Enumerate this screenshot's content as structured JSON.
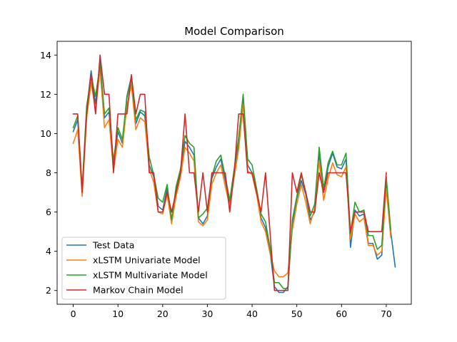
{
  "chart_data": {
    "type": "line",
    "title": "Model Comparison",
    "xlabel": "",
    "ylabel": "",
    "xlim": [
      -3.6,
      75.6
    ],
    "ylim": [
      1.3,
      14.7
    ],
    "xticks": [
      0,
      10,
      20,
      30,
      40,
      50,
      60,
      70
    ],
    "yticks": [
      2,
      4,
      6,
      8,
      10,
      12,
      14
    ],
    "grid": false,
    "legend_position": "lower-left",
    "series": [
      {
        "name": "Test Data",
        "color": "#1f77b4",
        "x": [
          0,
          1,
          2,
          3,
          4,
          5,
          6,
          7,
          8,
          9,
          10,
          11,
          12,
          13,
          14,
          15,
          16,
          17,
          18,
          19,
          20,
          21,
          22,
          23,
          24,
          25,
          26,
          27,
          28,
          29,
          30,
          31,
          32,
          33,
          34,
          35,
          36,
          37,
          38,
          39,
          40,
          41,
          42,
          43,
          44,
          45,
          46,
          47,
          48,
          49,
          50,
          51,
          52,
          53,
          54,
          55,
          56,
          57,
          58,
          59,
          60,
          61,
          62,
          63,
          64,
          65,
          66,
          67,
          68,
          69,
          70,
          71,
          72
        ],
        "y": [
          10.1,
          10.7,
          7.0,
          11.2,
          13.2,
          11.5,
          13.7,
          10.8,
          11.1,
          8.4,
          10.1,
          9.5,
          11.9,
          12.9,
          10.5,
          11.1,
          10.9,
          8.4,
          7.8,
          6.3,
          6.1,
          7.2,
          5.5,
          7.1,
          8.1,
          9.6,
          9.3,
          8.9,
          5.7,
          5.4,
          5.8,
          7.7,
          8.3,
          8.7,
          7.6,
          6.5,
          8.0,
          9.5,
          11.8,
          8.4,
          8.0,
          7.1,
          5.7,
          5.2,
          4.0,
          2.2,
          1.9,
          1.9,
          2.2,
          5.4,
          6.7,
          7.6,
          6.9,
          5.6,
          6.0,
          9.0,
          7.0,
          8.3,
          9.0,
          8.3,
          8.2,
          8.7,
          4.2,
          6.1,
          5.8,
          5.9,
          4.4,
          4.4,
          3.6,
          3.8,
          7.6,
          5.0,
          3.2
        ]
      },
      {
        "name": "xLSTM Univariate Model",
        "color": "#ff7f0e",
        "x": [
          0,
          1,
          2,
          3,
          4,
          5,
          6,
          7,
          8,
          9,
          10,
          11,
          12,
          13,
          14,
          15,
          16,
          17,
          18,
          19,
          20,
          21,
          22,
          23,
          24,
          25,
          26,
          27,
          28,
          29,
          30,
          31,
          32,
          33,
          34,
          35,
          36,
          37,
          38,
          39,
          40,
          41,
          42,
          43,
          44,
          45,
          46,
          47,
          48,
          49,
          50,
          51,
          52,
          53,
          54,
          55,
          56,
          57,
          58,
          59,
          60,
          61,
          62,
          63,
          64,
          65,
          66,
          67,
          68,
          69,
          70,
          71
        ],
        "y": [
          9.5,
          10.2,
          6.8,
          10.8,
          12.6,
          11.2,
          13.3,
          10.3,
          10.7,
          8.1,
          9.7,
          9.3,
          11.4,
          12.5,
          10.2,
          10.8,
          10.6,
          8.2,
          7.5,
          6.0,
          5.9,
          6.9,
          5.4,
          6.8,
          7.8,
          9.3,
          9.0,
          8.6,
          5.5,
          5.3,
          5.6,
          7.4,
          8.0,
          8.4,
          7.3,
          6.3,
          7.8,
          9.2,
          11.5,
          8.1,
          7.9,
          6.9,
          5.5,
          5.0,
          3.9,
          3.0,
          2.7,
          2.7,
          2.9,
          5.1,
          6.4,
          7.4,
          6.5,
          5.4,
          6.2,
          8.6,
          6.6,
          7.7,
          8.5,
          7.9,
          7.8,
          8.3,
          4.6,
          5.9,
          5.5,
          5.7,
          4.3,
          4.3,
          3.8,
          4.0,
          7.2,
          4.7
        ]
      },
      {
        "name": "xLSTM Multivariate Model",
        "color": "#2ca02c",
        "x": [
          0,
          1,
          2,
          3,
          4,
          5,
          6,
          7,
          8,
          9,
          10,
          11,
          12,
          13,
          14,
          15,
          16,
          17,
          18,
          19,
          20,
          21,
          22,
          23,
          24,
          25,
          26,
          27,
          28,
          29,
          30,
          31,
          32,
          33,
          34,
          35,
          36,
          37,
          38,
          39,
          40,
          41,
          42,
          43,
          44,
          45,
          46,
          47,
          48,
          49,
          50,
          51,
          52,
          53,
          54,
          55,
          56,
          57,
          58,
          59,
          60,
          61,
          62,
          63,
          64,
          65,
          66,
          67,
          68,
          69,
          70,
          71
        ],
        "y": [
          10.3,
          10.9,
          7.2,
          11.4,
          12.9,
          11.9,
          13.5,
          11.0,
          11.3,
          8.6,
          10.3,
          9.7,
          11.8,
          12.8,
          10.7,
          11.2,
          11.1,
          8.8,
          7.9,
          6.7,
          6.5,
          7.4,
          5.6,
          7.3,
          8.2,
          9.9,
          9.5,
          9.3,
          5.7,
          5.9,
          6.2,
          7.8,
          8.6,
          8.9,
          7.8,
          6.6,
          8.2,
          9.8,
          12.0,
          8.7,
          8.4,
          7.2,
          5.9,
          5.5,
          4.2,
          2.4,
          2.4,
          2.1,
          2.1,
          5.6,
          6.8,
          7.9,
          7.0,
          5.8,
          6.4,
          9.3,
          7.2,
          8.5,
          9.1,
          8.4,
          8.4,
          9.0,
          4.9,
          6.5,
          6.0,
          6.1,
          4.8,
          4.8,
          4.1,
          4.3,
          7.8,
          5.1
        ]
      },
      {
        "name": "Markov Chain Model",
        "color": "#d62728",
        "x": [
          0,
          1,
          2,
          3,
          4,
          5,
          6,
          7,
          8,
          9,
          10,
          11,
          12,
          13,
          14,
          15,
          16,
          17,
          18,
          19,
          20,
          21,
          22,
          23,
          24,
          25,
          26,
          27,
          28,
          29,
          30,
          31,
          32,
          33,
          34,
          35,
          36,
          37,
          38,
          39,
          40,
          41,
          42,
          43,
          44,
          45,
          46,
          47,
          48,
          49,
          50,
          51,
          52,
          53,
          54,
          55,
          56,
          57,
          58,
          59,
          60,
          61,
          62,
          63,
          64,
          65,
          66,
          67,
          68,
          69,
          70
        ],
        "y": [
          11,
          11,
          7,
          11,
          13,
          11,
          14,
          12,
          12,
          8,
          11,
          11,
          11,
          13,
          11,
          12,
          12,
          8,
          8,
          6,
          6,
          7,
          6,
          7,
          8,
          11,
          8,
          8,
          6,
          8,
          6,
          8,
          8,
          8,
          8,
          6,
          8,
          11,
          11,
          8,
          8,
          7,
          6,
          8,
          5,
          2,
          2,
          2,
          2,
          8,
          7,
          8,
          7,
          6,
          6,
          8,
          7,
          8,
          8,
          8,
          8,
          8,
          5,
          6,
          6,
          6,
          5,
          5,
          5,
          5,
          8
        ]
      }
    ]
  }
}
